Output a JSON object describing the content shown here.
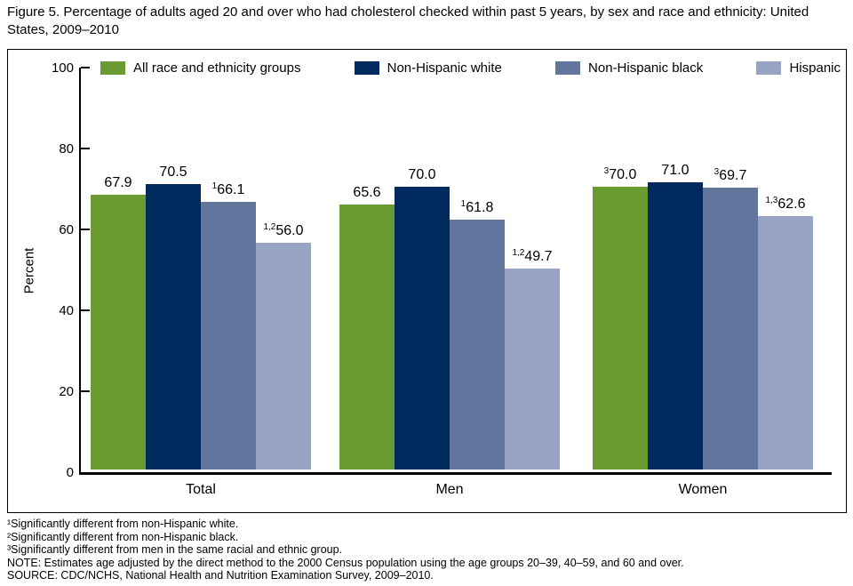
{
  "title": "Figure 5. Percentage of adults aged 20 and over who had cholesterol checked within past 5 years, by sex and race and ethnicity: United States, 2009–2010",
  "chart_data": {
    "type": "bar",
    "title": "Figure 5. Percentage of adults aged 20 and over who had cholesterol checked within past 5 years, by sex and race and ethnicity: United States, 2009–2010",
    "xlabel": "",
    "ylabel": "Percent",
    "ylim": [
      0,
      100
    ],
    "yticks": [
      0,
      20,
      40,
      60,
      80,
      100
    ],
    "grid": false,
    "legend_position": "top",
    "categories": [
      "Total",
      "Men",
      "Women"
    ],
    "series": [
      {
        "name": "All race and ethnicity groups",
        "color": "#699b32",
        "values": [
          67.9,
          65.6,
          70.0
        ],
        "label_sups": [
          "",
          "",
          "3"
        ]
      },
      {
        "name": "Non-Hispanic white",
        "color": "#002a5e",
        "values": [
          70.5,
          70.0,
          71.0
        ],
        "label_sups": [
          "",
          "",
          ""
        ]
      },
      {
        "name": "Non-Hispanic black",
        "color": "#62759d",
        "values": [
          66.1,
          61.8,
          69.7
        ],
        "label_sups": [
          "1",
          "1",
          "3"
        ]
      },
      {
        "name": "Hispanic",
        "color": "#98a4c4",
        "values": [
          56.0,
          49.7,
          62.6
        ],
        "label_sups": [
          "1,2",
          "1,2",
          "1,3"
        ]
      }
    ]
  },
  "footnotes": [
    "¹Significantly different from non-Hispanic white.",
    "²Significantly different from non-Hispanic black.",
    "³Significantly different from men in the same racial and ethnic group.",
    "NOTE: Estimates age adjusted by the direct method to the 2000 Census population using the age groups 20–39, 40–59, and 60 and over.",
    "SOURCE: CDC/NCHS, National Health and Nutrition Examination Survey, 2009–2010."
  ]
}
